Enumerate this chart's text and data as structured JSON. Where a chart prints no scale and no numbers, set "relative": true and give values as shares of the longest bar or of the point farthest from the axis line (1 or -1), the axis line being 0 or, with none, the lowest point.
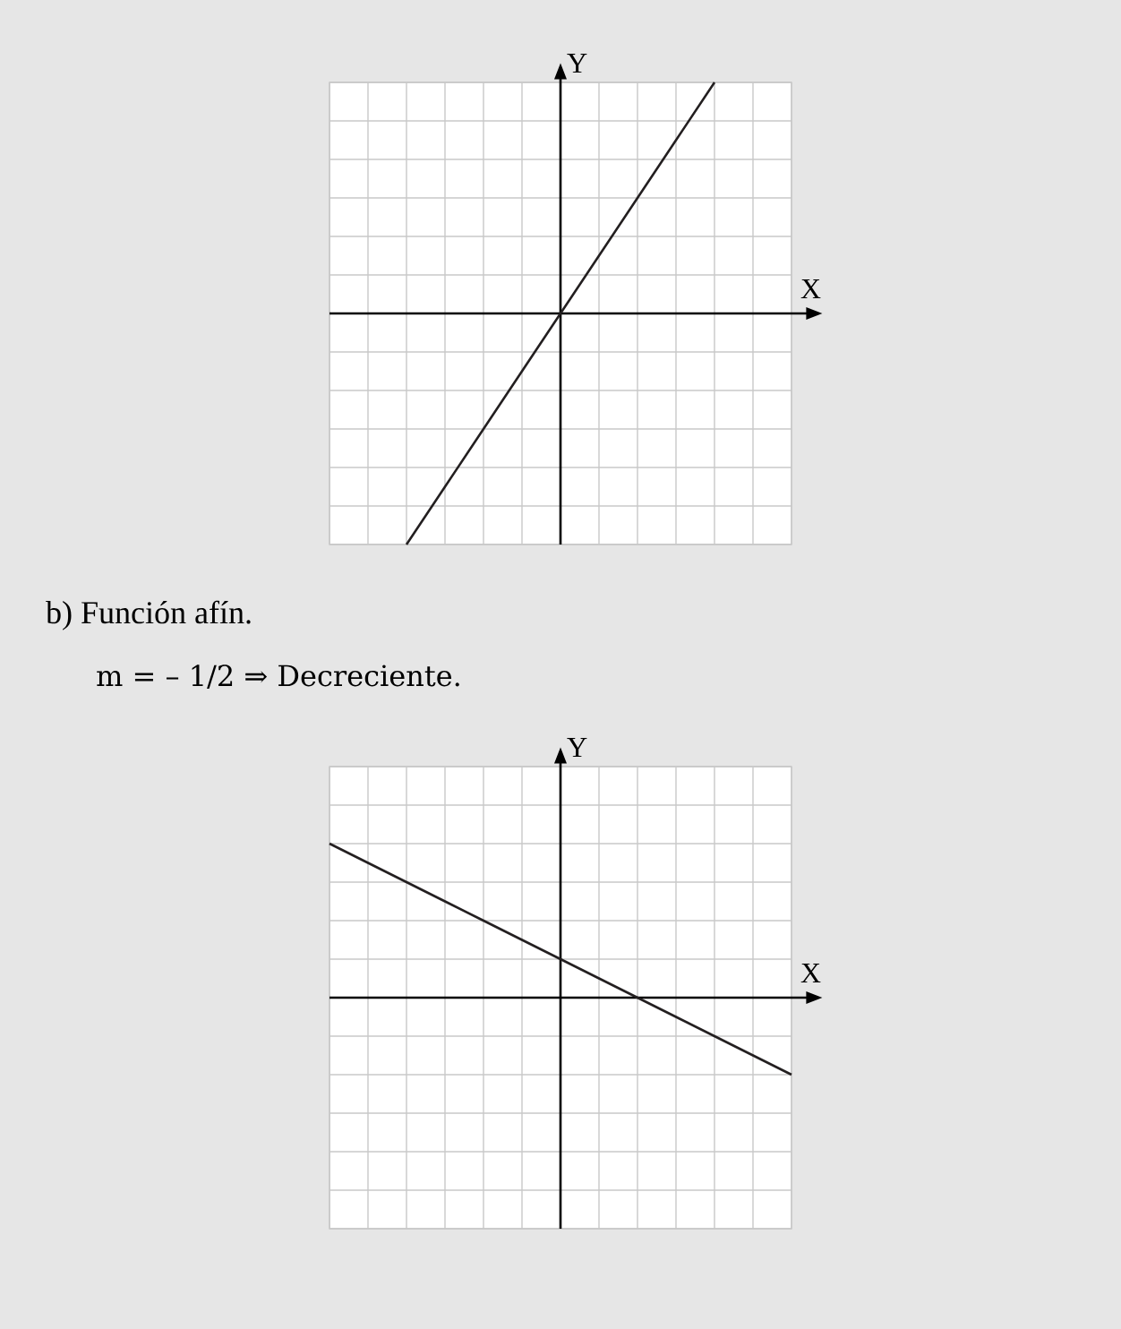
{
  "chart_data": [
    {
      "type": "line",
      "xlabel": "X",
      "ylabel": "Y",
      "relative": true,
      "grid": true,
      "color": "#231f20",
      "categories": [
        null,
        null,
        null,
        null,
        null,
        null,
        null,
        null,
        null,
        null,
        null,
        null,
        null
      ],
      "values": [
        null,
        null,
        -1,
        -0.75,
        -0.5,
        -0.25,
        0,
        0.25,
        0.5,
        0.75,
        1,
        null,
        null
      ]
    },
    {
      "type": "line",
      "title": "b) Función afín.",
      "subtitle": "m = – 1/2 ⇒ Decreciente.",
      "xlabel": "X",
      "ylabel": "Y",
      "relative": true,
      "grid": true,
      "color": "#231f20",
      "categories": [
        null,
        null,
        null,
        null,
        null,
        null,
        null,
        null,
        null,
        null,
        null,
        null,
        null
      ],
      "values": [
        1,
        0.875,
        0.75,
        0.625,
        0.5,
        0.375,
        0.25,
        0.125,
        0,
        -0.125,
        -0.25,
        -0.375,
        -0.5
      ]
    }
  ]
}
